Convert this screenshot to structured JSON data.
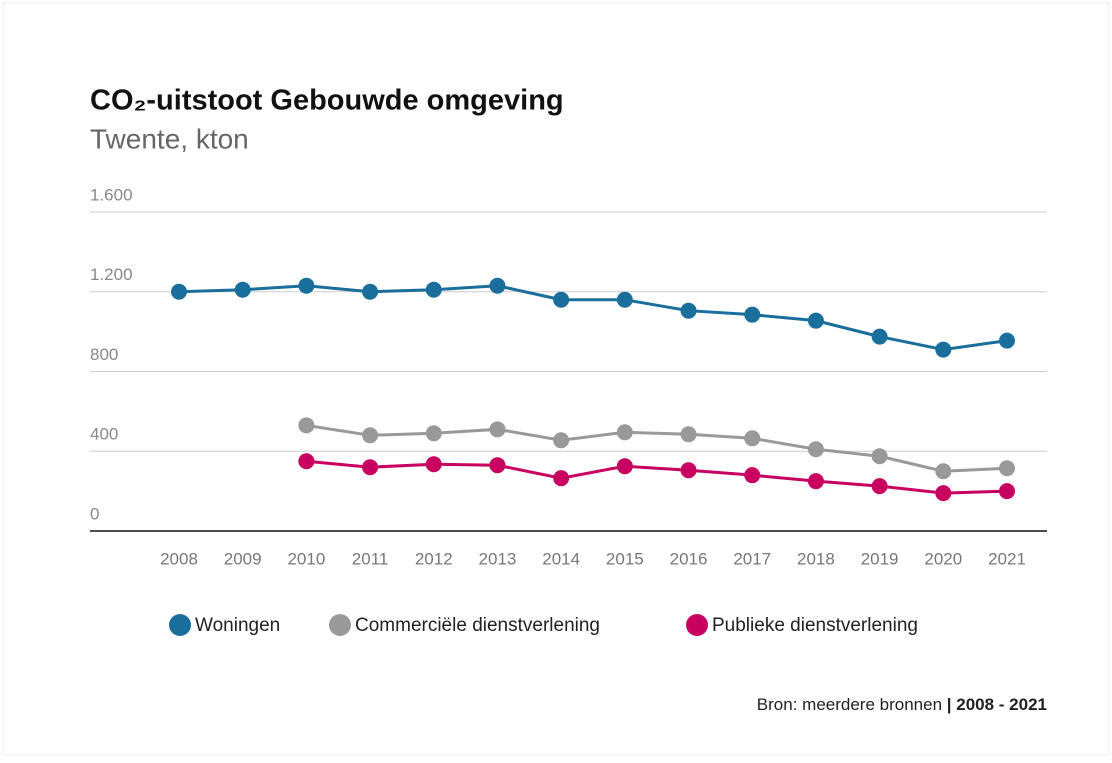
{
  "chart_data": {
    "type": "line",
    "title": "CO₂-uitstoot Gebouwde omgeving",
    "subtitle": "Twente, kton",
    "categories": [
      "2008",
      "2009",
      "2010",
      "2011",
      "2012",
      "2013",
      "2014",
      "2015",
      "2016",
      "2017",
      "2018",
      "2019",
      "2020",
      "2021"
    ],
    "series": [
      {
        "name": "Woningen",
        "color": "#1a6e9c",
        "values": [
          1200,
          1210,
          1230,
          1200,
          1210,
          1230,
          1160,
          1160,
          1105,
          1085,
          1055,
          975,
          910,
          955
        ]
      },
      {
        "name": "Commerciële dienstverlening",
        "color": "#999999",
        "values": [
          null,
          null,
          530,
          480,
          490,
          510,
          455,
          495,
          485,
          465,
          410,
          375,
          300,
          315
        ]
      },
      {
        "name": "Publieke dienstverlening",
        "color": "#c8005f",
        "values": [
          null,
          null,
          350,
          320,
          335,
          330,
          265,
          325,
          305,
          280,
          250,
          225,
          190,
          200
        ]
      }
    ],
    "ylim": [
      0,
      1600
    ],
    "yticks": [
      0,
      400,
      800,
      {
        "value": 1200,
        "label": "1.200"
      },
      {
        "value": 1600,
        "label": "1.600"
      }
    ],
    "grid": true,
    "legend": "bottom",
    "source": "Bron: meerdere bronnen",
    "source_period": "| 2008 - 2021"
  }
}
